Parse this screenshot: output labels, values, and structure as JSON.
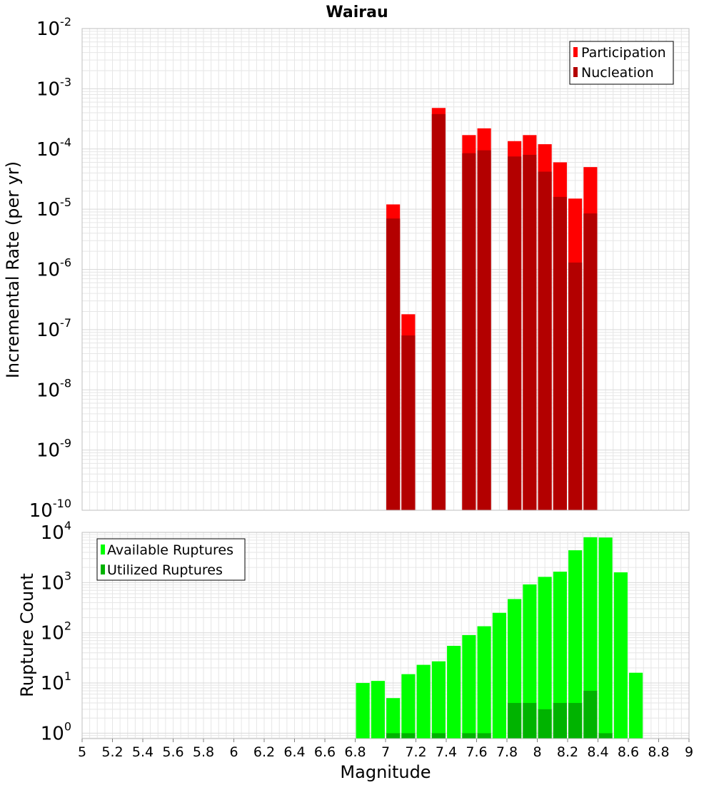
{
  "title": "Wairau",
  "colors": {
    "participation": "#ff0000",
    "nucleation": "#b30000",
    "available": "#00ff00",
    "utilized": "#00b300",
    "grid": "#e6e6e6",
    "frame": "#bfbfbf"
  },
  "chart_data": [
    {
      "type": "bar",
      "scale": "log",
      "title": "Wairau",
      "xlabel": "",
      "ylabel": "Incremental Rate (per yr)",
      "xlim": [
        5,
        9
      ],
      "ylim": [
        1e-10,
        0.01
      ],
      "y_ticks": [
        {
          "base": "10",
          "exp": "-10",
          "value": 1e-10
        },
        {
          "base": "10",
          "exp": "-9",
          "value": 1e-09
        },
        {
          "base": "10",
          "exp": "-8",
          "value": 1e-08
        },
        {
          "base": "10",
          "exp": "-7",
          "value": 1e-07
        },
        {
          "base": "10",
          "exp": "-6",
          "value": 1e-06
        },
        {
          "base": "10",
          "exp": "-5",
          "value": 1e-05
        },
        {
          "base": "10",
          "exp": "-4",
          "value": 0.0001
        },
        {
          "base": "10",
          "exp": "-3",
          "value": 0.001
        },
        {
          "base": "10",
          "exp": "-2",
          "value": 0.01
        }
      ],
      "legend_position": "top-right",
      "grid": true,
      "series": [
        {
          "name": "Participation",
          "x": [
            7.05,
            7.15,
            7.35,
            7.55,
            7.65,
            7.85,
            7.95,
            8.05,
            8.15,
            8.25,
            8.35
          ],
          "values": [
            1.2e-05,
            1.8e-07,
            0.00048,
            0.00017,
            0.00022,
            0.000135,
            0.00017,
            0.00012,
            6e-05,
            1.5e-05,
            5e-05
          ]
        },
        {
          "name": "Nucleation",
          "x": [
            7.05,
            7.15,
            7.35,
            7.55,
            7.65,
            7.85,
            7.95,
            8.05,
            8.15,
            8.25,
            8.35
          ],
          "values": [
            7e-06,
            8e-08,
            0.00038,
            8.5e-05,
            9.5e-05,
            7.5e-05,
            8e-05,
            4.2e-05,
            1.6e-05,
            1.3e-06,
            8.5e-06
          ]
        }
      ]
    },
    {
      "type": "bar",
      "scale": "log",
      "xlabel": "Magnitude",
      "ylabel": "Rupture Count",
      "xlim": [
        5,
        9
      ],
      "ylim": [
        0.78,
        10000
      ],
      "x_ticks": [
        "5",
        "5.2",
        "5.4",
        "5.6",
        "5.8",
        "6",
        "6.2",
        "6.4",
        "6.6",
        "6.8",
        "7",
        "7.2",
        "7.4",
        "7.6",
        "7.8",
        "8",
        "8.2",
        "8.4",
        "8.6",
        "8.8",
        "9"
      ],
      "y_ticks": [
        {
          "base": "10",
          "exp": "0",
          "value": 1
        },
        {
          "base": "10",
          "exp": "1",
          "value": 10
        },
        {
          "base": "10",
          "exp": "2",
          "value": 100
        },
        {
          "base": "10",
          "exp": "3",
          "value": 1000
        },
        {
          "base": "10",
          "exp": "4",
          "value": 10000
        }
      ],
      "legend_position": "top-left",
      "grid": true,
      "series": [
        {
          "name": "Available Ruptures",
          "x": [
            6.85,
            6.95,
            7.05,
            7.15,
            7.25,
            7.35,
            7.45,
            7.55,
            7.65,
            7.75,
            7.85,
            7.95,
            8.05,
            8.15,
            8.25,
            8.35,
            8.45,
            8.55,
            8.65
          ],
          "values": [
            10,
            11,
            5,
            15,
            23,
            27,
            55,
            90,
            135,
            250,
            470,
            920,
            1300,
            1650,
            4400,
            8000,
            7900,
            1600,
            16
          ]
        },
        {
          "name": "Utilized Ruptures",
          "x": [
            7.05,
            7.15,
            7.35,
            7.55,
            7.65,
            7.85,
            7.95,
            8.05,
            8.15,
            8.25,
            8.35,
            8.45
          ],
          "values": [
            1,
            1,
            1,
            1,
            1,
            4,
            4,
            3,
            4,
            4,
            7,
            1
          ]
        }
      ]
    }
  ]
}
